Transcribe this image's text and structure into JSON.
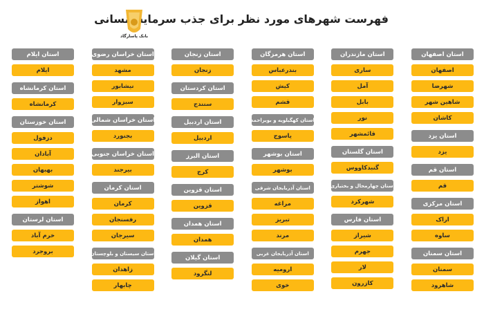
{
  "title": "فهرست شهرهای مورد نظر برای جذب سرمایه انسانی",
  "logo": {
    "text": "بانک پاسارگاد",
    "color": "#f2b632"
  },
  "colors": {
    "header": "#8c8c8c",
    "item": "#fdb913"
  },
  "columns": [
    [
      {
        "province": "استان اصفهان",
        "cities": [
          "اصفهان",
          "شهرضا",
          "شاهین شهر",
          "کاشان"
        ]
      },
      {
        "province": "استان یزد",
        "cities": [
          "یزد"
        ]
      },
      {
        "province": "استان قم",
        "cities": [
          "قم"
        ]
      },
      {
        "province": "استان مرکزی",
        "cities": [
          "اراک",
          "ساوه"
        ]
      },
      {
        "province": "استان سمنان",
        "cities": [
          "سمنان",
          "شاهرود"
        ]
      }
    ],
    [
      {
        "province": "استان مازندران",
        "cities": [
          "ساری",
          "آمل",
          "بابل",
          "نور",
          "قائمشهر"
        ]
      },
      {
        "province": "استان گلستان",
        "cities": [
          "گنبدکاووس"
        ]
      },
      {
        "province": "استان چهارمحال و بختیاری",
        "cities": [
          "شهرکرد"
        ]
      },
      {
        "province": "استان فارس",
        "cities": [
          "شیراز",
          "جهرم",
          "لار",
          "کازرون"
        ]
      }
    ],
    [
      {
        "province": "استان هرمزگان",
        "cities": [
          "بندرعباس",
          "کیش",
          "قشم"
        ]
      },
      {
        "province": "استان کهگیلویه و بویراحمد",
        "cities": [
          "یاسوج"
        ]
      },
      {
        "province": "استان بوشهر",
        "cities": [
          "بوشهر"
        ]
      },
      {
        "province": "استان آذربایجان شرقی",
        "cities": [
          "مراغه",
          "تبریز",
          "مرند"
        ]
      },
      {
        "province": "استان آذربایجان غربی",
        "cities": [
          "ارومیه",
          "خوی"
        ]
      }
    ],
    [
      {
        "province": "استان زنجان",
        "cities": [
          "زنجان"
        ]
      },
      {
        "province": "استان کردستان",
        "cities": [
          "سنندج"
        ]
      },
      {
        "province": "استان اردبیل",
        "cities": [
          "اردبیل"
        ]
      },
      {
        "province": "استان البرز",
        "cities": [
          "کرج"
        ]
      },
      {
        "province": "استان قزوین",
        "cities": [
          "قزوین"
        ]
      },
      {
        "province": "استان همدان",
        "cities": [
          "همدان"
        ]
      },
      {
        "province": "استان گیلان",
        "cities": [
          "لنگرود"
        ]
      }
    ],
    [
      {
        "province": "استان خراسان رضوی",
        "cities": [
          "مشهد",
          "نیشابور",
          "سبزوار"
        ]
      },
      {
        "province": "استان خراسان شمالی",
        "cities": [
          "بجنورد"
        ]
      },
      {
        "province": "استان خراسان جنوبی",
        "cities": [
          "بیرجند"
        ]
      },
      {
        "province": "استان کرمان",
        "cities": [
          "کرمان",
          "رفسنجان",
          "سیرجان"
        ]
      },
      {
        "province": "استان سیستان و بلوچستان",
        "cities": [
          "زاهدان",
          "چابهار"
        ]
      }
    ],
    [
      {
        "province": "استان ایلام",
        "cities": [
          "ایلام"
        ]
      },
      {
        "province": "استان کرمانشاه",
        "cities": [
          "کرمانشاه"
        ]
      },
      {
        "province": "استان خوزستان",
        "cities": [
          "دزفول",
          "آبادان",
          "بهبهان",
          "شوشتر",
          "اهواز"
        ]
      },
      {
        "province": "استان لرستان",
        "cities": [
          "خرم آباد",
          "بروجرد"
        ]
      }
    ]
  ]
}
